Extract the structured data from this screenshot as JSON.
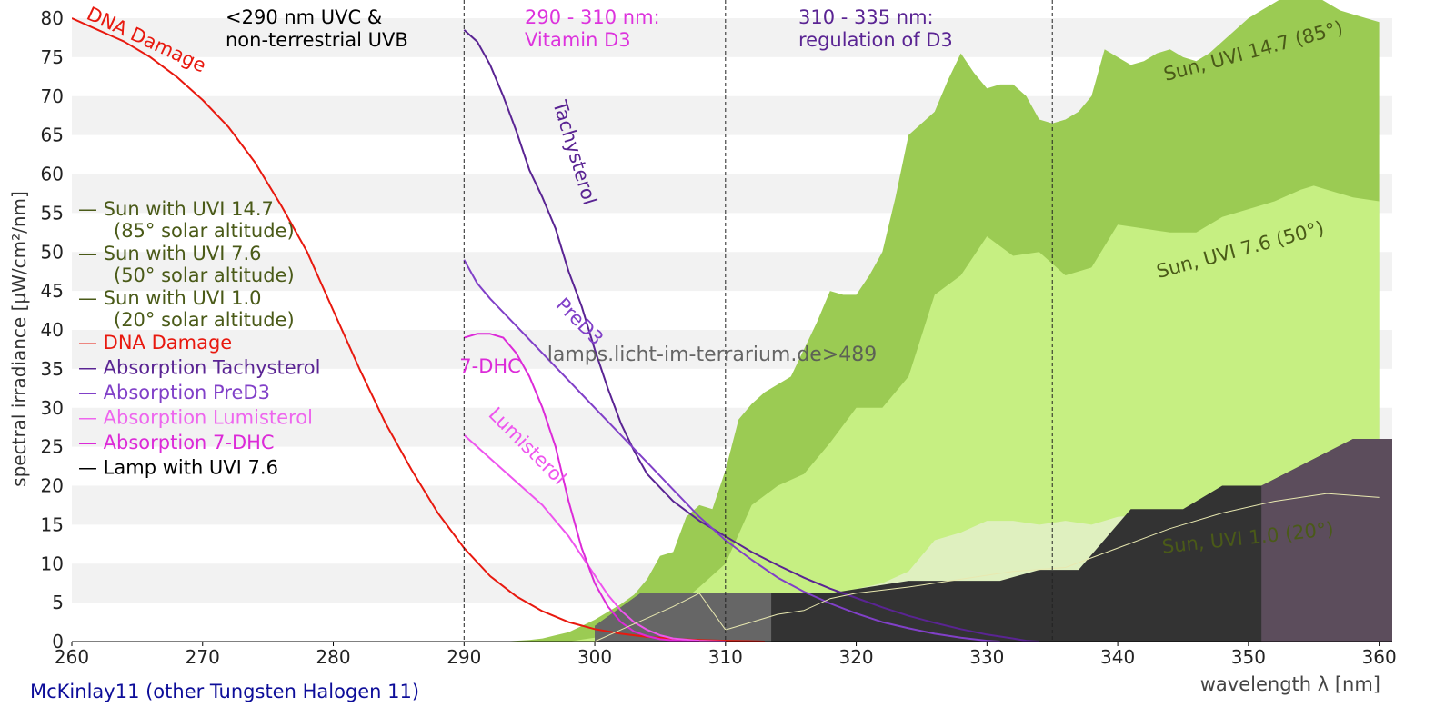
{
  "chart_data": {
    "type": "area",
    "title": "McKinlay11 (other Tungsten Halogen 11)",
    "xlabel": "wavelength λ [nm]",
    "ylabel": "spectral irradiance [µW/cm²/nm]",
    "xlim": [
      260,
      361
    ],
    "ylim": [
      0,
      80
    ],
    "xticks": [
      260,
      270,
      280,
      290,
      300,
      310,
      320,
      330,
      340,
      350,
      360
    ],
    "yticks": [
      0,
      5,
      10,
      15,
      20,
      25,
      30,
      35,
      40,
      45,
      50,
      55,
      60,
      65,
      70,
      75,
      80
    ],
    "grid": "horizontal bands",
    "watermark": "lamps.licht-im-terrarium.de>489",
    "colors": {
      "sun_high": "#9bcb53",
      "sun_mid": "#c6ef82",
      "sun_low": "#dff0bf",
      "lamp": "#333333",
      "lamp_window_low": "#666666",
      "lamp_window_high": "#5c4d5c",
      "dna": "#e8190f",
      "tachysterol": "#5a2493",
      "pred3": "#8140c8",
      "lumisterol": "#ee55ee",
      "dhc": "#dc2ad8",
      "legend_sun": "#4a5a18",
      "band_text_d3": "#dd33dd",
      "band_text_reg": "#5a2493",
      "title": "#0d0d99"
    },
    "regions": [
      {
        "x": 290,
        "label_lines": [
          "<290 nm UVC &",
          "non-terrestrial UVB"
        ]
      },
      {
        "x": 310,
        "label_lines": [
          "290 - 310 nm:",
          "Vitamin D3"
        ]
      },
      {
        "x": 335,
        "label_lines": [
          "310 - 335 nm:",
          "regulation of D3"
        ]
      }
    ],
    "legend": [
      {
        "line1": "— Sun with UVI 14.7",
        "line2": "(85° solar altitude)",
        "color": "#4a5a18"
      },
      {
        "line1": "— Sun with UVI 7.6",
        "line2": "(50° solar altitude)",
        "color": "#4a5a18"
      },
      {
        "line1": "— Sun with UVI 1.0",
        "line2": "(20° solar altitude)",
        "color": "#4a5a18"
      },
      {
        "line1": "— DNA Damage",
        "color": "#e8190f"
      },
      {
        "line1": "— Absorption Tachysterol",
        "color": "#5a2493"
      },
      {
        "line1": "— Absorption PreD3",
        "color": "#8140c8"
      },
      {
        "line1": "— Absorption Lumisterol",
        "color": "#ee66ee"
      },
      {
        "line1": "— Absorption 7-DHC",
        "color": "#dc2ad8"
      },
      {
        "line1": "— Lamp with UVI 7.6",
        "color": "#000000"
      }
    ],
    "series": [
      {
        "name": "Sun, UVI 14.7 (85°)",
        "kind": "area",
        "color": "#9bcb53",
        "x": [
          293,
          295,
          296,
          297,
          298,
          299,
          300,
          301,
          302,
          303,
          304,
          305,
          306,
          307,
          308,
          309,
          310,
          311,
          312,
          313,
          314,
          315,
          316,
          317,
          318,
          319,
          320,
          321,
          322,
          323,
          324,
          325,
          326,
          327,
          328,
          329,
          330,
          331,
          332,
          333,
          334,
          335,
          336,
          337,
          338,
          339,
          340,
          341,
          342,
          343,
          344,
          345,
          346,
          347,
          348,
          349,
          350,
          351,
          352,
          353,
          354,
          355,
          356,
          357,
          358,
          359,
          360
        ],
        "values": [
          0,
          0.2,
          0.4,
          0.8,
          1.2,
          2.0,
          2.8,
          3.8,
          4.8,
          6.0,
          8.0,
          11.0,
          11.5,
          16.0,
          17.5,
          17.0,
          22.0,
          28.5,
          30.5,
          32.0,
          33.0,
          34.0,
          37.5,
          41.0,
          45.0,
          44.5,
          44.5,
          47.0,
          50.0,
          57.0,
          65.0,
          66.5,
          68.0,
          72.0,
          75.5,
          73.0,
          71.0,
          71.5,
          71.5,
          70.0,
          67.0,
          66.5,
          67.0,
          68.0,
          70.0,
          76.0,
          75.0,
          74.0,
          74.5,
          75.5,
          76.0,
          75.0,
          74.5,
          75.5,
          77.0,
          78.5,
          80.0,
          81.0,
          82.0,
          83.0,
          83.5,
          83.0,
          82.0,
          81.0,
          80.5,
          80.0,
          79.5
        ]
      },
      {
        "name": "Sun, UVI 7.6 (50°)",
        "kind": "area",
        "color": "#c6ef82",
        "x": [
          298,
          300,
          302,
          304,
          306,
          308,
          310,
          312,
          314,
          316,
          318,
          320,
          322,
          324,
          326,
          328,
          330,
          332,
          334,
          336,
          338,
          340,
          342,
          344,
          346,
          348,
          350,
          352,
          354,
          355,
          356,
          358,
          360
        ],
        "values": [
          0,
          0.5,
          1.2,
          2.5,
          4.2,
          7.0,
          10.0,
          17.5,
          20.0,
          21.5,
          25.5,
          30.0,
          30.0,
          34.0,
          44.5,
          47.0,
          52.0,
          49.5,
          50.0,
          47.0,
          48.0,
          53.5,
          53.0,
          52.5,
          52.5,
          54.5,
          55.5,
          56.5,
          58.0,
          58.5,
          58.0,
          57.0,
          56.5
        ]
      },
      {
        "name": "Sun, UVI 1.0 (20°)",
        "kind": "area",
        "color": "#dff0bf",
        "x": [
          302,
          306,
          310,
          314,
          318,
          322,
          324,
          326,
          328,
          330,
          332,
          334,
          336,
          338,
          340,
          344,
          348,
          352,
          356,
          360
        ],
        "values": [
          0,
          1.0,
          2.5,
          4.0,
          6.0,
          7.5,
          9.0,
          13.0,
          14.0,
          15.5,
          15.5,
          15.0,
          15.5,
          15.0,
          16.0,
          16.5,
          17.5,
          18.5,
          19.0,
          18.5
        ]
      },
      {
        "name": "Lamp with UVI 7.6",
        "kind": "area",
        "color": "#333333",
        "x": [
          300,
          303.5,
          318,
          324,
          331,
          334,
          337,
          341,
          345,
          348,
          351,
          358,
          361
        ],
        "values": [
          2.0,
          6.2,
          6.2,
          7.8,
          7.8,
          9.2,
          9.2,
          17.0,
          17.0,
          20.0,
          20.0,
          26.0,
          26.0
        ]
      },
      {
        "name": "DNA Damage",
        "kind": "line",
        "color": "#e8190f",
        "x": [
          260,
          262,
          264,
          266,
          268,
          270,
          272,
          274,
          276,
          278,
          280,
          282,
          284,
          286,
          288,
          290,
          292,
          294,
          296,
          298,
          300,
          302,
          304,
          306,
          308,
          310,
          312,
          313
        ],
        "values": [
          80,
          78.5,
          77,
          75,
          72.5,
          69.5,
          66,
          61.5,
          56,
          50,
          42.5,
          35,
          28,
          22,
          16.5,
          12,
          8.4,
          5.8,
          3.9,
          2.5,
          1.6,
          1.0,
          0.6,
          0.35,
          0.2,
          0.1,
          0.05,
          0
        ]
      },
      {
        "name": "Absorption Tachysterol",
        "kind": "line",
        "color": "#5a2493",
        "x": [
          290,
          291,
          292,
          293,
          294,
          295,
          296,
          297,
          298,
          299,
          300,
          301,
          302,
          303,
          304,
          306,
          308,
          310,
          312,
          314,
          316,
          318,
          320,
          322,
          324,
          326,
          328,
          330,
          332,
          333,
          334
        ],
        "values": [
          78.5,
          77,
          74,
          70,
          65.5,
          60.5,
          57,
          53,
          47.5,
          43,
          37.5,
          32.5,
          28,
          24.5,
          21.5,
          18,
          15.5,
          13.5,
          11.5,
          9.8,
          8.2,
          6.8,
          5.6,
          4.4,
          3.3,
          2.4,
          1.6,
          0.9,
          0.4,
          0.1,
          0
        ]
      },
      {
        "name": "Absorption PreD3",
        "kind": "line",
        "color": "#8140c8",
        "x": [
          290,
          291,
          292,
          294,
          296,
          298,
          300,
          302,
          304,
          306,
          308,
          310,
          312,
          314,
          316,
          318,
          320,
          322,
          324,
          326,
          328,
          330,
          331
        ],
        "values": [
          49,
          46,
          44,
          40.5,
          37,
          33.5,
          30,
          26.5,
          23,
          19.5,
          16,
          13,
          10.5,
          8.2,
          6.4,
          4.9,
          3.6,
          2.5,
          1.7,
          1.0,
          0.5,
          0.1,
          0
        ]
      },
      {
        "name": "Absorption Lumisterol",
        "kind": "line",
        "color": "#ee55ee",
        "x": [
          290,
          291,
          292,
          293,
          294,
          295,
          296,
          297,
          298,
          299,
          300,
          301,
          302,
          303,
          304,
          305,
          306,
          308,
          310
        ],
        "values": [
          26.5,
          25,
          23.5,
          22,
          20.5,
          19,
          17.5,
          15.5,
          13.5,
          11,
          8.5,
          6,
          4,
          2.5,
          1.5,
          0.8,
          0.4,
          0.1,
          0
        ]
      },
      {
        "name": "Absorption 7-DHC",
        "kind": "line",
        "color": "#dc2ad8",
        "x": [
          290,
          291,
          292,
          293,
          294,
          295,
          296,
          297,
          298,
          299,
          300,
          301,
          302,
          303,
          304,
          305,
          306,
          307,
          308
        ],
        "values": [
          39,
          39.5,
          39.5,
          39,
          37,
          34,
          30,
          25,
          18,
          12,
          7.5,
          4.5,
          2.5,
          1.3,
          0.7,
          0.3,
          0.15,
          0.05,
          0
        ]
      },
      {
        "name": "Lamp with UVI 7.6 (spectrum)",
        "kind": "line",
        "color": "#e8e8b0",
        "x": [
          300,
          302,
          304,
          306,
          308,
          310,
          312,
          314,
          316,
          318,
          320,
          324,
          328,
          332,
          336,
          340,
          344,
          348,
          352,
          356,
          360
        ],
        "values": [
          0,
          1.5,
          3.0,
          4.5,
          6.2,
          1.5,
          2.5,
          3.5,
          4.0,
          5.5,
          6.2,
          7.0,
          8.0,
          9.0,
          9.5,
          12.0,
          14.5,
          16.5,
          18.0,
          19.0,
          18.5
        ]
      }
    ],
    "windows": [
      {
        "x0": 300,
        "x1": 313.5,
        "color": "#666666"
      },
      {
        "x0": 351,
        "x1": 361,
        "color": "#5c4d5c"
      }
    ],
    "annotations": [
      {
        "text": "DNA Damage",
        "x": 265.5,
        "y": 76.5,
        "angle": 25,
        "color": "#e8190f"
      },
      {
        "text": "Tachysterol",
        "x": 298,
        "y": 62.5,
        "angle": 73,
        "color": "#5a2493"
      },
      {
        "text": "PreD3",
        "x": 298.5,
        "y": 40.5,
        "angle": 45,
        "color": "#8140c8"
      },
      {
        "text": "7-DHC",
        "x": 292,
        "y": 34.5,
        "angle": 0,
        "color": "#dc2ad8"
      },
      {
        "text": "Lumisterol",
        "x": 294.5,
        "y": 24.5,
        "angle": 45,
        "color": "#ee55ee"
      },
      {
        "text": "Sun, UVI 14.7 (85°)",
        "x": 350.5,
        "y": 75,
        "angle": -15,
        "color": "#4a5a18"
      },
      {
        "text": "Sun, UVI 7.6 (50°)",
        "x": 349.5,
        "y": 49.5,
        "angle": -15,
        "color": "#4a5a18"
      },
      {
        "text": "Sun, UVI 1.0 (20°)",
        "x": 350,
        "y": 12.5,
        "angle": -6,
        "color": "#4a5a18"
      }
    ]
  }
}
